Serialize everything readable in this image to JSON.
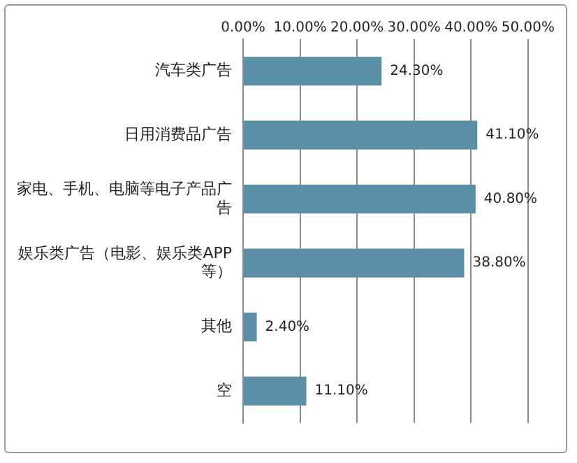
{
  "chart_data": {
    "type": "bar",
    "orientation": "horizontal",
    "categories": [
      "汽车类广告",
      "日用消费品广告",
      "家电、手机、电脑等电子产品广告",
      "娱乐类广告（电影、娱乐类APP等）",
      "其他",
      "空"
    ],
    "values": [
      24.3,
      41.1,
      40.8,
      38.8,
      2.4,
      11.1
    ],
    "value_labels": [
      "24.30%",
      "41.10%",
      "40.80%",
      "38.80%",
      "2.40%",
      "11.10%"
    ],
    "color": "#5b8fa8",
    "xlim": [
      0,
      50
    ],
    "xticks": [
      {
        "value": 0,
        "label": "0.00%"
      },
      {
        "value": 10,
        "label": "10.00%"
      },
      {
        "value": 20,
        "label": "20.00%"
      },
      {
        "value": 30,
        "label": "30.00%"
      },
      {
        "value": 40,
        "label": "40.00%"
      },
      {
        "value": 50,
        "label": "50.00%"
      }
    ],
    "grid": "x",
    "legend": false
  }
}
